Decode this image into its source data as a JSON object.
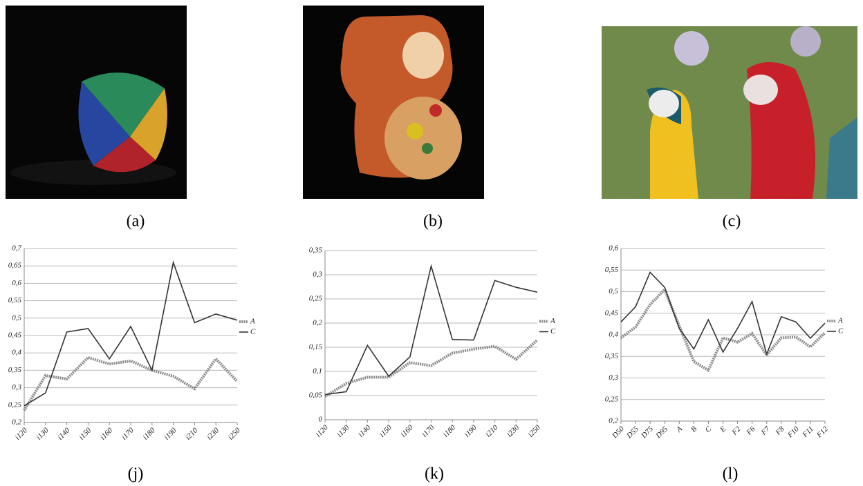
{
  "photos": [
    {
      "caption": "(a)"
    },
    {
      "caption": "(b)"
    },
    {
      "caption": "(c)"
    }
  ],
  "chart_data": [
    {
      "type": "line",
      "caption": "(j)",
      "categories": [
        "i120",
        "i130",
        "i140",
        "i150",
        "i160",
        "i170",
        "i180",
        "i190",
        "i210",
        "i230",
        "i250"
      ],
      "series": [
        {
          "name": "A",
          "color": "#8a8a8a",
          "values": [
            0.235,
            0.335,
            0.325,
            0.387,
            0.368,
            0.377,
            0.35,
            0.333,
            0.297,
            0.383,
            0.318
          ]
        },
        {
          "name": "C",
          "color": "#333333",
          "values": [
            0.248,
            0.285,
            0.46,
            0.47,
            0.383,
            0.476,
            0.35,
            0.66,
            0.487,
            0.512,
            0.494
          ]
        }
      ],
      "ylim": [
        0.2,
        0.7
      ],
      "yticks": [
        {
          "value": 0.2,
          "label": "0,2"
        },
        {
          "value": 0.25,
          "label": "0,25"
        },
        {
          "value": 0.3,
          "label": "0,3"
        },
        {
          "value": 0.35,
          "label": "0,35"
        },
        {
          "value": 0.4,
          "label": "0,4"
        },
        {
          "value": 0.45,
          "label": "0,45"
        },
        {
          "value": 0.5,
          "label": "0,5"
        },
        {
          "value": 0.55,
          "label": "0,55"
        },
        {
          "value": 0.6,
          "label": "0,6"
        },
        {
          "value": 0.65,
          "label": "0,65"
        },
        {
          "value": 0.7,
          "label": "0,7"
        }
      ],
      "grid": true,
      "legend": "right"
    },
    {
      "type": "line",
      "caption": "(k)",
      "categories": [
        "i120",
        "i130",
        "i140",
        "i150",
        "i160",
        "i170",
        "i180",
        "i190",
        "i210",
        "i230",
        "i250"
      ],
      "series": [
        {
          "name": "A",
          "color": "#8a8a8a",
          "values": [
            0.048,
            0.075,
            0.088,
            0.088,
            0.118,
            0.112,
            0.138,
            0.146,
            0.152,
            0.125,
            0.165
          ]
        },
        {
          "name": "C",
          "color": "#333333",
          "values": [
            0.052,
            0.058,
            0.154,
            0.09,
            0.13,
            0.318,
            0.166,
            0.165,
            0.288,
            0.274,
            0.264
          ]
        }
      ],
      "ylim": [
        0,
        0.35
      ],
      "yticks": [
        0,
        {
          "value": 0.05,
          "label": "0,05"
        },
        {
          "value": 0.1,
          "label": "0,1"
        },
        {
          "value": 0.15,
          "label": "0,15"
        },
        {
          "value": 0.2,
          "label": "0,2"
        },
        {
          "value": 0.25,
          "label": "0,25"
        },
        {
          "value": 0.3,
          "label": "0,3"
        },
        {
          "value": 0.35,
          "label": "0,35"
        }
      ],
      "grid": true,
      "legend": "right"
    },
    {
      "type": "line",
      "caption": "(l)",
      "categories": [
        "D50",
        "D55",
        "D75",
        "D95",
        "A",
        "B",
        "C",
        "E",
        "F2",
        "F6",
        "F7",
        "F8",
        "F10",
        "F11",
        "F12"
      ],
      "series": [
        {
          "name": "A",
          "color": "#8a8a8a",
          "values": [
            0.393,
            0.418,
            0.47,
            0.505,
            0.42,
            0.338,
            0.318,
            0.393,
            0.383,
            0.403,
            0.353,
            0.393,
            0.395,
            0.372,
            0.405
          ]
        },
        {
          "name": "C",
          "color": "#333333",
          "values": [
            0.43,
            0.465,
            0.545,
            0.51,
            0.415,
            0.367,
            0.435,
            0.36,
            0.415,
            0.477,
            0.355,
            0.442,
            0.43,
            0.392,
            0.427
          ]
        }
      ],
      "ylim": [
        0.2,
        0.6
      ],
      "yticks": [
        {
          "value": 0.2,
          "label": "0,2"
        },
        {
          "value": 0.25,
          "label": "0,25"
        },
        {
          "value": 0.3,
          "label": "0,3"
        },
        {
          "value": 0.35,
          "label": "0,35"
        },
        {
          "value": 0.4,
          "label": "0,4"
        },
        {
          "value": 0.45,
          "label": "0,45"
        },
        {
          "value": 0.5,
          "label": "0,5"
        },
        {
          "value": 0.55,
          "label": "0,55"
        },
        {
          "value": 0.6,
          "label": "0,6"
        }
      ],
      "grid": true,
      "legend": "right"
    }
  ]
}
